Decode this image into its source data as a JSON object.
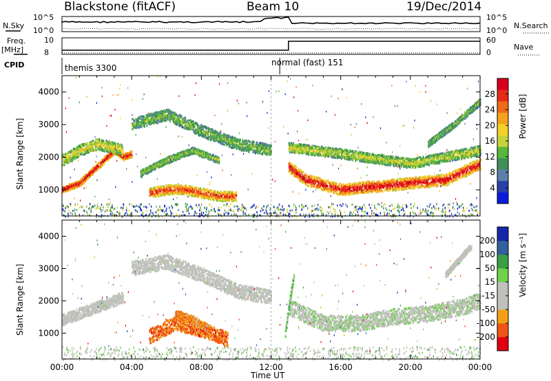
{
  "header": {
    "title": "Blackstone (fitACF)",
    "beam": "Beam 10",
    "date": "19/Dec/2014"
  },
  "info_panels": {
    "nsky_label": "N.Sky",
    "nsearch_label": "N.Search",
    "nsky_ticks": [
      "10^5",
      "10^0"
    ],
    "nsearch_ticks": [
      "10^5",
      "10^0"
    ],
    "freq_label": "Freq.",
    "freq_unit": "[MHz]",
    "freq_ticks": [
      "10",
      "8"
    ],
    "nave_label": "Nave",
    "nave_ticks": [
      "60",
      "0"
    ],
    "cpid_label": "CPID",
    "cpid_modes": [
      {
        "name": "themis 3300"
      },
      {
        "name": "normal (fast) 151"
      }
    ]
  },
  "colors": {
    "power_scale": [
      "#0a1bdc",
      "#2a3fa8",
      "#5b7fa8",
      "#3f8f5a",
      "#56b83a",
      "#c7d23a",
      "#f5d02a",
      "#f4a21e",
      "#ee6a16",
      "#e6291a",
      "#d6001c"
    ],
    "velocity_scale": [
      "#e00010",
      "#ef5516",
      "#f3a018",
      "#c0c0bc",
      "#c0c0bc",
      "#6ed24b",
      "#3a9e44",
      "#335fa0",
      "#1626a8"
    ]
  },
  "chart_data": [
    {
      "type": "heatmap",
      "name": "power",
      "xlabel": "",
      "ylabel": "Slant Range [km]",
      "y_ticks": [
        "1000",
        "2000",
        "3000",
        "4000"
      ],
      "ylim": [
        200,
        4500
      ],
      "colorbar_label": "Power [dB]",
      "colorbar_ticks": [
        "4",
        "8",
        "12",
        "16",
        "20",
        "24",
        "28"
      ],
      "colorbar_range": [
        0,
        32
      ],
      "bands": [
        {
          "x": [
            0,
            1,
            2,
            3,
            3.5,
            4
          ],
          "y": [
            1000,
            1200,
            1700,
            2200,
            2000,
            2100
          ],
          "width": 200,
          "level": 0.9
        },
        {
          "x": [
            0,
            1,
            2,
            3.5
          ],
          "y": [
            1900,
            2200,
            2400,
            2200
          ],
          "width": 350,
          "level": 0.45
        },
        {
          "x": [
            5,
            6,
            7,
            8,
            9,
            10
          ],
          "y": [
            900,
            1000,
            1000,
            900,
            800,
            800
          ],
          "width": 300,
          "level": 0.75
        },
        {
          "x": [
            4.5,
            6,
            7.5,
            9
          ],
          "y": [
            1500,
            1900,
            2200,
            1900
          ],
          "width": 200,
          "level": 0.35
        },
        {
          "x": [
            4,
            6,
            8,
            10,
            12
          ],
          "y": [
            3000,
            3300,
            2800,
            2400,
            2200
          ],
          "width": 350,
          "level": 0.3
        },
        {
          "x": [
            13,
            14,
            16,
            18,
            20,
            22,
            24
          ],
          "y": [
            1700,
            1300,
            1000,
            1100,
            1200,
            1300,
            1800
          ],
          "width": 350,
          "level": 0.85
        },
        {
          "x": [
            13,
            16,
            20,
            24
          ],
          "y": [
            2300,
            2100,
            1800,
            2200
          ],
          "width": 300,
          "level": 0.4
        },
        {
          "x": [
            21,
            22.5,
            24
          ],
          "y": [
            2400,
            3000,
            3700
          ],
          "width": 200,
          "level": 0.3
        }
      ]
    },
    {
      "type": "heatmap",
      "name": "velocity",
      "xlabel": "Time UT",
      "ylabel": "Slant Range [km]",
      "x_ticks": [
        "00:00",
        "04:00",
        "08:00",
        "12:00",
        "16:00",
        "20:00",
        "00:00"
      ],
      "x_values": [
        0,
        4,
        8,
        12,
        16,
        20,
        24
      ],
      "xlim": [
        0,
        24
      ],
      "y_ticks": [
        "1000",
        "2000",
        "3000",
        "4000"
      ],
      "ylim": [
        200,
        4500
      ],
      "colorbar_label": "Velocity [m s⁻¹]",
      "colorbar_ticks": [
        "-200",
        "-100",
        "-50",
        "-15",
        "15",
        "50",
        "100",
        "200"
      ],
      "bands": [
        {
          "x": [
            0,
            2,
            3.5
          ],
          "y": [
            1400,
            1800,
            2100
          ],
          "width": 350,
          "level": 0.45
        },
        {
          "x": [
            4,
            6,
            8,
            10,
            12
          ],
          "y": [
            3000,
            3200,
            2800,
            2300,
            2100
          ],
          "width": 450,
          "level": 0.45
        },
        {
          "x": [
            5,
            6.5,
            8,
            9.5
          ],
          "y": [
            900,
            1300,
            1100,
            800
          ],
          "width": 450,
          "level": 0.2
        },
        {
          "x": [
            6.5,
            7.5,
            8.5
          ],
          "y": [
            1600,
            1400,
            1100
          ],
          "width": 250,
          "level": 0.25
        },
        {
          "x": [
            13,
            15,
            17,
            19,
            21,
            23,
            24
          ],
          "y": [
            1800,
            1300,
            1300,
            1500,
            1600,
            1800,
            2000
          ],
          "width": 500,
          "level": 0.5
        },
        {
          "x": [
            12.8,
            13,
            13.3
          ],
          "y": [
            1000,
            1800,
            2800
          ],
          "width": 250,
          "level": 0.65
        },
        {
          "x": [
            22,
            23.5
          ],
          "y": [
            2800,
            3700
          ],
          "width": 200,
          "level": 0.45
        }
      ]
    }
  ]
}
